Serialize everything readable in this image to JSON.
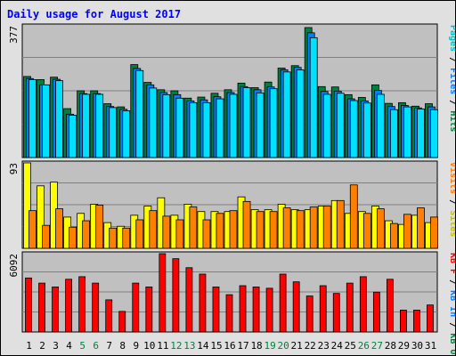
{
  "chart_data": {
    "type": "bar",
    "title": "Daily usage for August 2017",
    "x": [
      "1",
      "2",
      "3",
      "4",
      "5",
      "6",
      "7",
      "8",
      "9",
      "10",
      "11",
      "12",
      "13",
      "14",
      "15",
      "16",
      "17",
      "18",
      "19",
      "20",
      "21",
      "22",
      "23",
      "24",
      "25",
      "26",
      "27",
      "28",
      "29",
      "30",
      "31"
    ],
    "weekend_days": [
      "5",
      "6",
      "12",
      "13",
      "19",
      "20",
      "26",
      "27"
    ],
    "panels": [
      {
        "name": "top",
        "max_label": "377",
        "ylim": [
          0,
          377
        ],
        "right_labels": [
          "Pages",
          "Files",
          "Hits"
        ],
        "series": [
          {
            "name": "Hits",
            "color": "#008040",
            "values": [
              232,
              223,
              230,
              140,
              191,
              191,
              154,
              145,
              266,
              215,
              194,
              191,
              170,
              173,
              184,
              194,
              213,
              200,
              216,
              256,
              263,
              372,
              203,
              202,
              180,
              172,
              208,
              155,
              157,
              147,
              154
            ]
          },
          {
            "name": "Files",
            "color": "#0080ff",
            "values": [
              226,
              208,
              224,
              124,
              183,
              183,
              146,
              138,
              255,
              208,
              186,
              180,
              162,
              165,
              174,
              186,
              203,
              194,
              202,
              251,
              258,
              357,
              189,
              190,
              168,
              162,
              192,
              146,
              149,
              142,
              145
            ]
          },
          {
            "name": "Pages",
            "color": "#00e0ff",
            "values": [
              223,
              208,
              220,
              121,
              181,
              181,
              143,
              134,
              249,
              199,
              180,
              170,
              157,
              157,
              168,
              181,
              200,
              185,
              197,
              245,
              251,
              343,
              181,
              184,
              163,
              156,
              181,
              137,
              145,
              139,
              137
            ]
          }
        ]
      },
      {
        "name": "middle",
        "max_label": "93",
        "ylim": [
          0,
          93
        ],
        "right_labels": [
          "Visits",
          "Sites"
        ],
        "series": [
          {
            "name": "Visits",
            "color": "#ffff00",
            "values": [
              93,
              68,
              72,
              34,
              38,
              48,
              28,
              24,
              36,
              46,
              55,
              36,
              48,
              40,
              40,
              40,
              56,
              42,
              42,
              48,
              42,
              42,
              46,
              52,
              38,
              40,
              46,
              30,
              26,
              36,
              28
            ]
          },
          {
            "name": "Sites",
            "color": "#ff8000",
            "values": [
              41,
              25,
              43,
              23,
              30,
              47,
              22,
              22,
              31,
              41,
              35,
              31,
              45,
              31,
              38,
              41,
              51,
              40,
              40,
              44,
              41,
              45,
              46,
              52,
              69,
              38,
              43,
              27,
              37,
              44,
              34
            ]
          }
        ]
      },
      {
        "name": "bottom",
        "max_label": "6092",
        "ylim": [
          0,
          6092
        ],
        "right_labels": [
          "KB F",
          "KB In",
          "KB Out"
        ],
        "series": [
          {
            "name": "KB F",
            "color": "#ff0000",
            "values": [
              4200,
              3800,
              3500,
              4100,
              4300,
              3800,
              2500,
              1600,
              3800,
              3500,
              6092,
              5700,
              5000,
              4500,
              3500,
              2900,
              3600,
              3500,
              3400,
              4500,
              3900,
              2800,
              3600,
              3000,
              3800,
              4300,
              3100,
              4100,
              1700,
              1700,
              2100
            ]
          }
        ]
      }
    ]
  }
}
